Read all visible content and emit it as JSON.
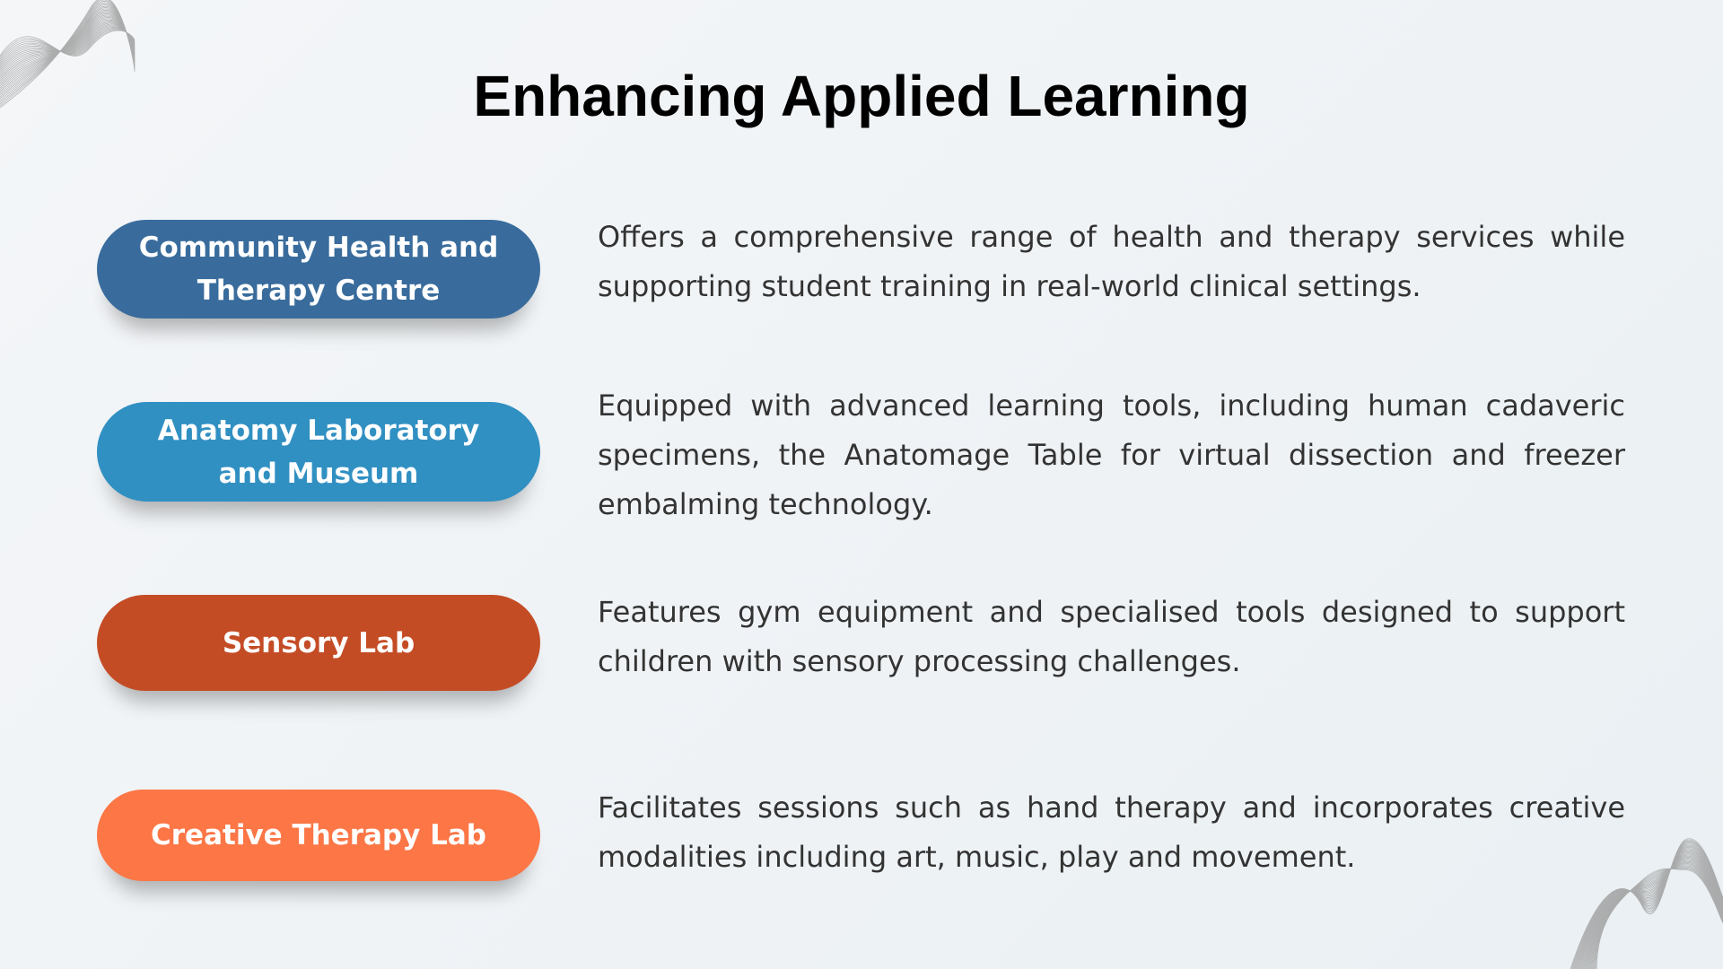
{
  "title": "Enhancing Applied Learning",
  "items": [
    {
      "label": "Community Health and Therapy Centre",
      "color": "#396c9c",
      "description": "Offers a comprehensive range of health and therapy services while supporting student training in real-world clinical settings."
    },
    {
      "label": "Anatomy Laboratory and Museum",
      "color": "#3190c2",
      "description": "Equipped with advanced learning tools, including human cadaveric specimens, the Anatomage Table for virtual dissection and freezer embalming technology."
    },
    {
      "label": "Sensory Lab",
      "color": "#c44c25",
      "description": "Features gym equipment and specialised tools designed to support children with sensory processing challenges."
    },
    {
      "label": "Creative Therapy Lab",
      "color": "#fc7646",
      "description": "Facilitates sessions such as hand therapy and incorporates creative modalities including art, music, play and movement."
    }
  ]
}
